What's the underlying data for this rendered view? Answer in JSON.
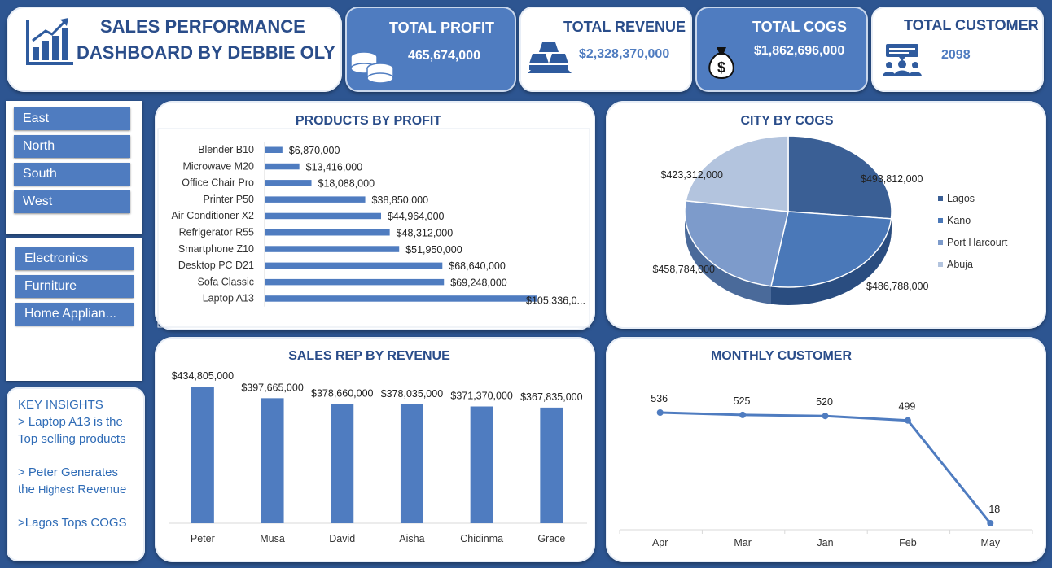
{
  "header": {
    "title_line1": "SALES PERFORMANCE",
    "title_line2": "DASHBOARD BY DEBBIE OLY",
    "logo_icon": "bar-chart-growth-icon"
  },
  "kpis": {
    "profit": {
      "title": "TOTAL PROFIT",
      "value": "465,674,000",
      "icon": "coins-icon"
    },
    "revenue": {
      "title": "TOTAL REVENUE",
      "value": "$2,328,370,000",
      "icon": "gold-bars-icon"
    },
    "cogs": {
      "title": "TOTAL COGS",
      "value": "$1,862,696,000",
      "icon": "money-bag-icon"
    },
    "customer": {
      "title": "TOTAL CUSTOMER",
      "value": "2098",
      "icon": "customers-chat-icon"
    }
  },
  "slicers": {
    "region": [
      "East",
      "North",
      "South",
      "West"
    ],
    "category": [
      "Electronics",
      "Furniture",
      "Home Applian..."
    ]
  },
  "insights": {
    "heading": "KEY INSIGHTS",
    "line1a": "> Laptop A13 is the",
    "line1b": "Top selling products",
    "line2a": "> Peter Generates",
    "line2b_pre": "the ",
    "line2b_small": "Highest",
    "line2b_post": " Revenue",
    "line3": ">Lagos Tops COGS"
  },
  "colors": {
    "background": "#2d5591",
    "accent": "#4f7cc0",
    "title": "#2a4d8a",
    "pie": [
      "#3a5f95",
      "#4a78b8",
      "#7d9bcb",
      "#b3c4de"
    ]
  },
  "chart_data": [
    {
      "id": "products_by_profit",
      "type": "bar",
      "orientation": "horizontal",
      "title": "PRODUCTS BY PROFIT",
      "categories": [
        "Blender B10",
        "Microwave M20",
        "Office Chair Pro",
        "Printer P50",
        "Air Conditioner X2",
        "Refrigerator R55",
        "Smartphone Z10",
        "Desktop PC D21",
        "Sofa Classic",
        "Laptop A13"
      ],
      "values": [
        6870000,
        13416000,
        18088000,
        38850000,
        44964000,
        48312000,
        51950000,
        68640000,
        69248000,
        105336000
      ],
      "labels": [
        "$6,870,000",
        "$13,416,000",
        "$18,088,000",
        "$38,850,000",
        "$44,964,000",
        "$48,312,000",
        "$51,950,000",
        "$68,640,000",
        "$69,248,000",
        "$105,336,0..."
      ]
    },
    {
      "id": "city_by_cogs",
      "type": "pie",
      "title": "CITY BY COGS",
      "categories": [
        "Lagos",
        "Kano",
        "Port Harcourt",
        "Abuja"
      ],
      "values": [
        493812000,
        486788000,
        458784000,
        423312000
      ],
      "labels": [
        "$493,812,000",
        "$486,788,000",
        "$458,784,000",
        "$423,312,000"
      ],
      "legend": "right"
    },
    {
      "id": "sales_rep_by_revenue",
      "type": "bar",
      "title": "SALES REP BY REVENUE",
      "categories": [
        "Peter",
        "Musa",
        "David",
        "Aisha",
        "Chidinma",
        "Grace"
      ],
      "values": [
        434805000,
        397665000,
        378660000,
        378035000,
        371370000,
        367835000
      ],
      "labels": [
        "$434,805,000",
        "$397,665,000",
        "$378,660,000",
        "$378,035,000",
        "$371,370,000",
        "$367,835,000"
      ]
    },
    {
      "id": "monthly_customer",
      "type": "line",
      "title": "MONTHLY CUSTOMER",
      "categories": [
        "Apr",
        "Mar",
        "Jan",
        "Feb",
        "May"
      ],
      "values": [
        536,
        525,
        520,
        499,
        18
      ],
      "labels": [
        "536",
        "525",
        "520",
        "499",
        "18"
      ]
    }
  ]
}
